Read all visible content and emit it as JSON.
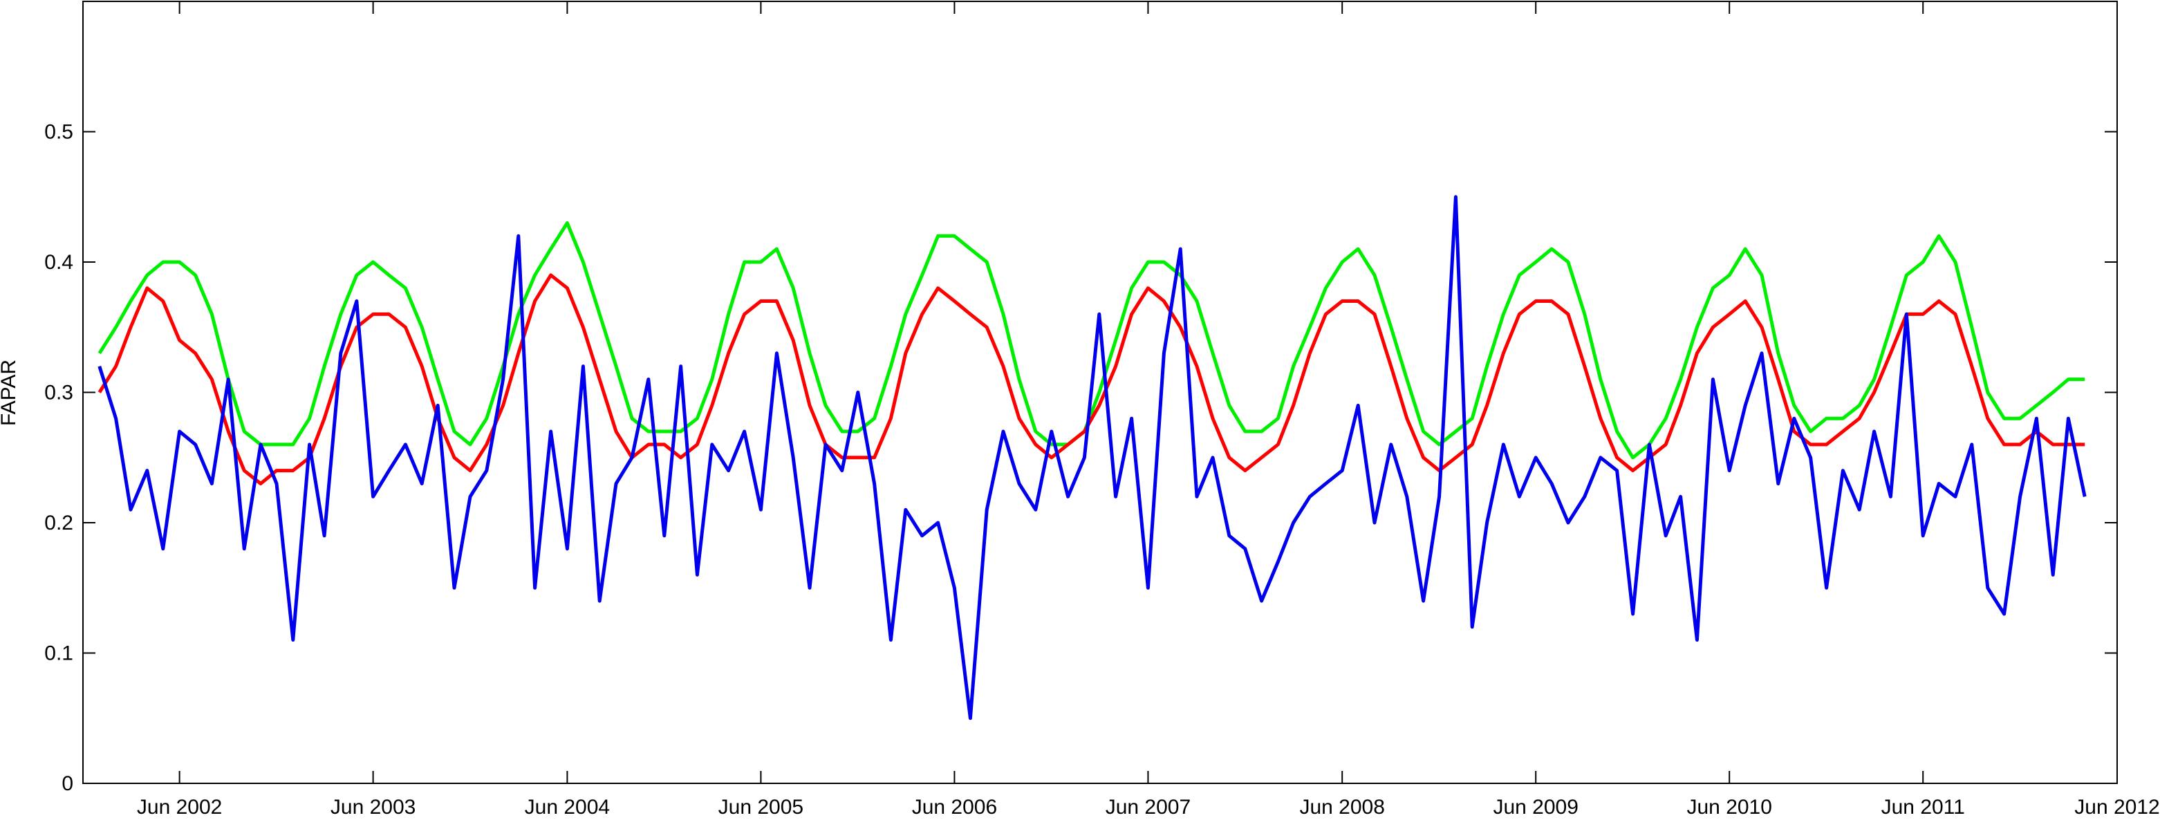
{
  "chart_data": {
    "type": "line",
    "title": "",
    "xlabel": "",
    "ylabel": "FAPAR",
    "xlim": [
      "2001-12-01",
      "2012-06-01"
    ],
    "ylim": [
      0,
      0.6
    ],
    "grid": false,
    "legend": "none",
    "x_ticks": [
      "Jun 2002",
      "Jun 2003",
      "Jun 2004",
      "Jun 2005",
      "Jun 2006",
      "Jun 2007",
      "Jun 2008",
      "Jun 2009",
      "Jun 2010",
      "Jun 2011",
      "Jun 2012"
    ],
    "x_tick_dates": [
      "2002-06-01",
      "2003-06-01",
      "2004-06-01",
      "2005-06-01",
      "2006-06-01",
      "2007-06-01",
      "2008-06-01",
      "2009-06-01",
      "2010-06-01",
      "2011-06-01",
      "2012-06-01"
    ],
    "y_ticks": [
      "0",
      "0.1",
      "0.2",
      "0.3",
      "0.4",
      "0.5"
    ],
    "y_tick_values": [
      0,
      0.1,
      0.2,
      0.3,
      0.4,
      0.5
    ],
    "series": [
      {
        "color": "#00ee00",
        "x": [
          "2002-01-01",
          "2002-02-01",
          "2002-03-01",
          "2002-04-01",
          "2002-05-01",
          "2002-06-01",
          "2002-07-01",
          "2002-08-01",
          "2002-09-01",
          "2002-10-01",
          "2002-11-01",
          "2002-12-01",
          "2003-01-01",
          "2003-02-01",
          "2003-03-01",
          "2003-04-01",
          "2003-05-01",
          "2003-06-01",
          "2003-07-01",
          "2003-08-01",
          "2003-09-01",
          "2003-10-01",
          "2003-11-01",
          "2003-12-01",
          "2004-01-01",
          "2004-02-01",
          "2004-03-01",
          "2004-04-01",
          "2004-05-01",
          "2004-06-01",
          "2004-07-01",
          "2004-08-01",
          "2004-09-01",
          "2004-10-01",
          "2004-11-01",
          "2004-12-01",
          "2005-01-01",
          "2005-02-01",
          "2005-03-01",
          "2005-04-01",
          "2005-05-01",
          "2005-06-01",
          "2005-07-01",
          "2005-08-01",
          "2005-09-01",
          "2005-10-01",
          "2005-11-01",
          "2005-12-01",
          "2006-01-01",
          "2006-02-01",
          "2006-03-01",
          "2006-04-01",
          "2006-05-01",
          "2006-06-01",
          "2006-07-01",
          "2006-08-01",
          "2006-09-01",
          "2006-10-01",
          "2006-11-01",
          "2006-12-01",
          "2007-01-01",
          "2007-02-01",
          "2007-03-01",
          "2007-04-01",
          "2007-05-01",
          "2007-06-01",
          "2007-07-01",
          "2007-08-01",
          "2007-09-01",
          "2007-10-01",
          "2007-11-01",
          "2007-12-01",
          "2008-01-01",
          "2008-02-01",
          "2008-03-01",
          "2008-04-01",
          "2008-05-01",
          "2008-06-01",
          "2008-07-01",
          "2008-08-01",
          "2008-09-01",
          "2008-10-01",
          "2008-11-01",
          "2008-12-01",
          "2009-01-01",
          "2009-02-01",
          "2009-03-01",
          "2009-04-01",
          "2009-05-01",
          "2009-06-01",
          "2009-07-01",
          "2009-08-01",
          "2009-09-01",
          "2009-10-01",
          "2009-11-01",
          "2009-12-01",
          "2010-01-01",
          "2010-02-01",
          "2010-03-01",
          "2010-04-01",
          "2010-05-01",
          "2010-06-01",
          "2010-07-01",
          "2010-08-01",
          "2010-09-01",
          "2010-10-01",
          "2010-11-01",
          "2010-12-01",
          "2011-01-01",
          "2011-02-01",
          "2011-03-01",
          "2011-04-01",
          "2011-05-01",
          "2011-06-01",
          "2011-07-01",
          "2011-08-01",
          "2011-09-01",
          "2011-10-01",
          "2011-11-01",
          "2011-12-01",
          "2012-01-01",
          "2012-02-01",
          "2012-03-01",
          "2012-04-01"
        ],
        "y": [
          0.33,
          0.35,
          0.37,
          0.39,
          0.4,
          0.4,
          0.39,
          0.36,
          0.31,
          0.27,
          0.26,
          0.26,
          0.26,
          0.28,
          0.32,
          0.36,
          0.39,
          0.4,
          0.39,
          0.38,
          0.35,
          0.31,
          0.27,
          0.26,
          0.28,
          0.32,
          0.36,
          0.39,
          0.41,
          0.43,
          0.4,
          0.36,
          0.32,
          0.28,
          0.27,
          0.27,
          0.27,
          0.28,
          0.31,
          0.36,
          0.4,
          0.4,
          0.41,
          0.38,
          0.33,
          0.29,
          0.27,
          0.27,
          0.28,
          0.32,
          0.36,
          0.39,
          0.42,
          0.42,
          0.41,
          0.4,
          0.36,
          0.31,
          0.27,
          0.26,
          0.26,
          0.27,
          0.3,
          0.34,
          0.38,
          0.4,
          0.4,
          0.39,
          0.37,
          0.33,
          0.29,
          0.27,
          0.27,
          0.28,
          0.32,
          0.35,
          0.38,
          0.4,
          0.41,
          0.39,
          0.35,
          0.31,
          0.27,
          0.26,
          0.27,
          0.28,
          0.32,
          0.36,
          0.39,
          0.4,
          0.41,
          0.4,
          0.36,
          0.31,
          0.27,
          0.25,
          0.26,
          0.28,
          0.31,
          0.35,
          0.38,
          0.39,
          0.41,
          0.39,
          0.33,
          0.29,
          0.27,
          0.28,
          0.28,
          0.29,
          0.31,
          0.35,
          0.39,
          0.4,
          0.42,
          0.4,
          0.35,
          0.3,
          0.28,
          0.28,
          0.29,
          0.3,
          0.31,
          0.31
        ]
      },
      {
        "color": "#ff0000",
        "x": [
          "2002-01-01",
          "2002-02-01",
          "2002-03-01",
          "2002-04-01",
          "2002-05-01",
          "2002-06-01",
          "2002-07-01",
          "2002-08-01",
          "2002-09-01",
          "2002-10-01",
          "2002-11-01",
          "2002-12-01",
          "2003-01-01",
          "2003-02-01",
          "2003-03-01",
          "2003-04-01",
          "2003-05-01",
          "2003-06-01",
          "2003-07-01",
          "2003-08-01",
          "2003-09-01",
          "2003-10-01",
          "2003-11-01",
          "2003-12-01",
          "2004-01-01",
          "2004-02-01",
          "2004-03-01",
          "2004-04-01",
          "2004-05-01",
          "2004-06-01",
          "2004-07-01",
          "2004-08-01",
          "2004-09-01",
          "2004-10-01",
          "2004-11-01",
          "2004-12-01",
          "2005-01-01",
          "2005-02-01",
          "2005-03-01",
          "2005-04-01",
          "2005-05-01",
          "2005-06-01",
          "2005-07-01",
          "2005-08-01",
          "2005-09-01",
          "2005-10-01",
          "2005-11-01",
          "2005-12-01",
          "2006-01-01",
          "2006-02-01",
          "2006-03-01",
          "2006-04-01",
          "2006-05-01",
          "2006-06-01",
          "2006-07-01",
          "2006-08-01",
          "2006-09-01",
          "2006-10-01",
          "2006-11-01",
          "2006-12-01",
          "2007-01-01",
          "2007-02-01",
          "2007-03-01",
          "2007-04-01",
          "2007-05-01",
          "2007-06-01",
          "2007-07-01",
          "2007-08-01",
          "2007-09-01",
          "2007-10-01",
          "2007-11-01",
          "2007-12-01",
          "2008-01-01",
          "2008-02-01",
          "2008-03-01",
          "2008-04-01",
          "2008-05-01",
          "2008-06-01",
          "2008-07-01",
          "2008-08-01",
          "2008-09-01",
          "2008-10-01",
          "2008-11-01",
          "2008-12-01",
          "2009-01-01",
          "2009-02-01",
          "2009-03-01",
          "2009-04-01",
          "2009-05-01",
          "2009-06-01",
          "2009-07-01",
          "2009-08-01",
          "2009-09-01",
          "2009-10-01",
          "2009-11-01",
          "2009-12-01",
          "2010-01-01",
          "2010-02-01",
          "2010-03-01",
          "2010-04-01",
          "2010-05-01",
          "2010-06-01",
          "2010-07-01",
          "2010-08-01",
          "2010-09-01",
          "2010-10-01",
          "2010-11-01",
          "2010-12-01",
          "2011-01-01",
          "2011-02-01",
          "2011-03-01",
          "2011-04-01",
          "2011-05-01",
          "2011-06-01",
          "2011-07-01",
          "2011-08-01",
          "2011-09-01",
          "2011-10-01",
          "2011-11-01",
          "2011-12-01",
          "2012-01-01",
          "2012-02-01",
          "2012-03-01",
          "2012-04-01"
        ],
        "y": [
          0.3,
          0.32,
          0.35,
          0.38,
          0.37,
          0.34,
          0.33,
          0.31,
          0.27,
          0.24,
          0.23,
          0.24,
          0.24,
          0.25,
          0.28,
          0.32,
          0.35,
          0.36,
          0.36,
          0.35,
          0.32,
          0.28,
          0.25,
          0.24,
          0.26,
          0.29,
          0.33,
          0.37,
          0.39,
          0.38,
          0.35,
          0.31,
          0.27,
          0.25,
          0.26,
          0.26,
          0.25,
          0.26,
          0.29,
          0.33,
          0.36,
          0.37,
          0.37,
          0.34,
          0.29,
          0.26,
          0.25,
          0.25,
          0.25,
          0.28,
          0.33,
          0.36,
          0.38,
          0.37,
          0.36,
          0.35,
          0.32,
          0.28,
          0.26,
          0.25,
          0.26,
          0.27,
          0.29,
          0.32,
          0.36,
          0.38,
          0.37,
          0.35,
          0.32,
          0.28,
          0.25,
          0.24,
          0.25,
          0.26,
          0.29,
          0.33,
          0.36,
          0.37,
          0.37,
          0.36,
          0.32,
          0.28,
          0.25,
          0.24,
          0.25,
          0.26,
          0.29,
          0.33,
          0.36,
          0.37,
          0.37,
          0.36,
          0.32,
          0.28,
          0.25,
          0.24,
          0.25,
          0.26,
          0.29,
          0.33,
          0.35,
          0.36,
          0.37,
          0.35,
          0.31,
          0.27,
          0.26,
          0.26,
          0.27,
          0.28,
          0.3,
          0.33,
          0.36,
          0.36,
          0.37,
          0.36,
          0.32,
          0.28,
          0.26,
          0.26,
          0.27,
          0.26,
          0.26,
          0.26
        ]
      },
      {
        "color": "#0000ee",
        "x": [
          "2002-01-01",
          "2002-02-01",
          "2002-03-01",
          "2002-04-01",
          "2002-05-01",
          "2002-06-01",
          "2002-07-01",
          "2002-08-01",
          "2002-09-01",
          "2002-10-01",
          "2002-11-01",
          "2002-12-01",
          "2003-01-01",
          "2003-02-01",
          "2003-03-01",
          "2003-04-01",
          "2003-05-01",
          "2003-06-01",
          "2003-07-01",
          "2003-08-01",
          "2003-09-01",
          "2003-10-01",
          "2003-11-01",
          "2003-12-01",
          "2004-01-01",
          "2004-02-01",
          "2004-03-01",
          "2004-04-01",
          "2004-05-01",
          "2004-06-01",
          "2004-07-01",
          "2004-08-01",
          "2004-09-01",
          "2004-10-01",
          "2004-11-01",
          "2004-12-01",
          "2005-01-01",
          "2005-02-01",
          "2005-03-01",
          "2005-04-01",
          "2005-05-01",
          "2005-06-01",
          "2005-07-01",
          "2005-08-01",
          "2005-09-01",
          "2005-10-01",
          "2005-11-01",
          "2005-12-01",
          "2006-01-01",
          "2006-02-01",
          "2006-03-01",
          "2006-04-01",
          "2006-05-01",
          "2006-06-01",
          "2006-07-01",
          "2006-08-01",
          "2006-09-01",
          "2006-10-01",
          "2006-11-01",
          "2006-12-01",
          "2007-01-01",
          "2007-02-01",
          "2007-03-01",
          "2007-04-01",
          "2007-05-01",
          "2007-06-01",
          "2007-07-01",
          "2007-08-01",
          "2007-09-01",
          "2007-10-01",
          "2007-11-01",
          "2007-12-01",
          "2008-01-01",
          "2008-02-01",
          "2008-03-01",
          "2008-04-01",
          "2008-05-01",
          "2008-06-01",
          "2008-07-01",
          "2008-08-01",
          "2008-09-01",
          "2008-10-01",
          "2008-11-01",
          "2008-12-01",
          "2009-01-01",
          "2009-02-01",
          "2009-03-01",
          "2009-04-01",
          "2009-05-01",
          "2009-06-01",
          "2009-07-01",
          "2009-08-01",
          "2009-09-01",
          "2009-10-01",
          "2009-11-01",
          "2009-12-01",
          "2010-01-01",
          "2010-02-01",
          "2010-03-01",
          "2010-04-01",
          "2010-05-01",
          "2010-06-01",
          "2010-07-01",
          "2010-08-01",
          "2010-09-01",
          "2010-10-01",
          "2010-11-01",
          "2010-12-01",
          "2011-01-01",
          "2011-02-01",
          "2011-03-01",
          "2011-04-01",
          "2011-05-01",
          "2011-06-01",
          "2011-07-01",
          "2011-08-01",
          "2011-09-01",
          "2011-10-01",
          "2011-11-01",
          "2011-12-01",
          "2012-01-01",
          "2012-02-01",
          "2012-03-01",
          "2012-04-01"
        ],
        "y": [
          0.32,
          0.28,
          0.21,
          0.24,
          0.18,
          0.27,
          0.26,
          0.23,
          0.31,
          0.18,
          0.26,
          0.23,
          0.11,
          0.26,
          0.19,
          0.33,
          0.37,
          0.22,
          0.24,
          0.26,
          0.23,
          0.29,
          0.15,
          0.22,
          0.24,
          0.31,
          0.42,
          0.15,
          0.27,
          0.18,
          0.32,
          0.14,
          0.23,
          0.25,
          0.31,
          0.19,
          0.32,
          0.16,
          0.26,
          0.24,
          0.27,
          0.21,
          0.33,
          0.25,
          0.15,
          0.26,
          0.24,
          0.3,
          0.23,
          0.11,
          0.21,
          0.19,
          0.2,
          0.15,
          0.05,
          0.21,
          0.27,
          0.23,
          0.21,
          0.27,
          0.22,
          0.25,
          0.36,
          0.22,
          0.28,
          0.15,
          0.33,
          0.41,
          0.22,
          0.25,
          0.19,
          0.18,
          0.14,
          0.17,
          0.2,
          0.22,
          0.23,
          0.24,
          0.29,
          0.2,
          0.26,
          0.22,
          0.14,
          0.22,
          0.45,
          0.12,
          0.2,
          0.26,
          0.22,
          0.25,
          0.23,
          0.2,
          0.22,
          0.25,
          0.24,
          0.13,
          0.26,
          0.19,
          0.22,
          0.11,
          0.31,
          0.24,
          0.29,
          0.33,
          0.23,
          0.28,
          0.25,
          0.15,
          0.24,
          0.21,
          0.27,
          0.22,
          0.36,
          0.19,
          0.23,
          0.22,
          0.26,
          0.15,
          0.13,
          0.22,
          0.28,
          0.16,
          0.28,
          0.22
        ]
      }
    ]
  }
}
